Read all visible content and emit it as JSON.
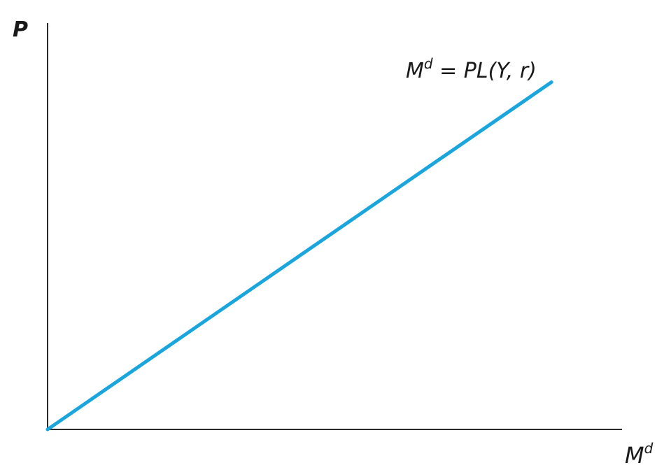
{
  "chart_data": {
    "type": "line",
    "title": "",
    "xlabel": {
      "main": "M",
      "sup": "d"
    },
    "ylabel": "P",
    "grid": false,
    "ticks": "none",
    "series": [
      {
        "name": {
          "lhs_main": "M",
          "lhs_sup": "d",
          "rhs": " = PL(Y, r)"
        },
        "description": "straight line through the origin with positive slope",
        "x": [
          0,
          1
        ],
        "y": [
          0,
          1
        ],
        "color": "#1aa6dc"
      }
    ],
    "xlim": [
      0,
      1.14
    ],
    "ylim": [
      0,
      1.17
    ]
  },
  "colors": {
    "curve": "#1aa6dc",
    "axes": "#2b2b2b"
  }
}
